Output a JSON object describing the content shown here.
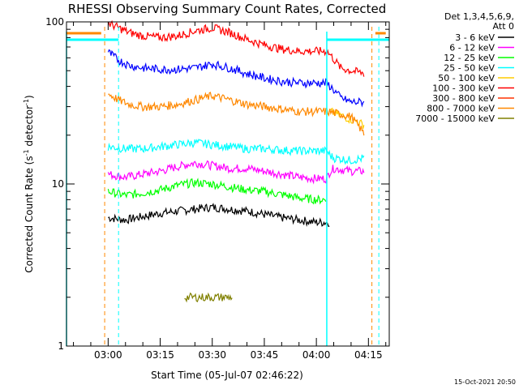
{
  "chart_data": {
    "type": "line",
    "title": "RHESSI Observing Summary Count Rates, Corrected",
    "xlabel": "Start Time (05-Jul-07 02:46:22)",
    "ylabel_main": "Corrected Count Rate (s",
    "ylabel_sup": "-1",
    "ylabel_tail": " detector",
    "ylabel_end": ")",
    "y_scale": "log",
    "ylim": [
      1,
      100
    ],
    "y_ticks": [
      {
        "value": 1,
        "label": "1"
      },
      {
        "value": 10,
        "label": "10"
      },
      {
        "value": 100,
        "label": "100"
      }
    ],
    "xlim_minutes": [
      -12,
      81
    ],
    "x_ticks": [
      {
        "value": 0,
        "label": "03:00"
      },
      {
        "value": 15,
        "label": "03:15"
      },
      {
        "value": 30,
        "label": "03:30"
      },
      {
        "value": 45,
        "label": "03:45"
      },
      {
        "value": 60,
        "label": "04:00"
      },
      {
        "value": 75,
        "label": "04:15"
      }
    ],
    "legend_header": [
      "Det 1,3,4,5,6,9,",
      "Att 0"
    ],
    "legend_position": "right",
    "series": [
      {
        "name": "3 - 6 keV",
        "color": "#000000",
        "x": [
          0,
          5,
          10,
          15,
          20,
          25,
          30,
          35,
          40,
          45,
          50,
          55,
          60,
          63,
          64
        ],
        "y": [
          6.2,
          6.0,
          6.3,
          6.6,
          6.8,
          7.0,
          7.2,
          7.0,
          6.8,
          6.5,
          6.2,
          6.0,
          5.8,
          5.8,
          5.8
        ]
      },
      {
        "name": "6 - 12 keV",
        "color": "#ff00ff",
        "x": [
          0,
          5,
          10,
          15,
          20,
          25,
          30,
          35,
          40,
          45,
          50,
          55,
          60,
          63,
          64,
          65,
          70,
          74
        ],
        "y": [
          11.5,
          11.0,
          11.5,
          12.0,
          12.8,
          13.5,
          13.0,
          12.5,
          12.5,
          12.0,
          11.5,
          11.0,
          10.8,
          10.8,
          12.0,
          12.5,
          12.0,
          12.0
        ]
      },
      {
        "name": "12 - 25 keV",
        "color": "#00ff00",
        "x": [
          0,
          5,
          10,
          15,
          20,
          25,
          30,
          35,
          40,
          45,
          50,
          55,
          60,
          63
        ],
        "y": [
          9.0,
          8.5,
          8.8,
          9.2,
          9.8,
          10.2,
          10.0,
          9.6,
          9.2,
          9.0,
          8.6,
          8.2,
          8.0,
          8.0
        ]
      },
      {
        "name": "25 - 50 keV",
        "color": "#00ffff",
        "x": [
          0,
          5,
          10,
          15,
          20,
          25,
          30,
          35,
          40,
          45,
          50,
          55,
          60,
          63,
          64,
          65,
          70,
          74
        ],
        "y": [
          17,
          16.5,
          16.5,
          17,
          17.5,
          18,
          17.5,
          17,
          16.5,
          16.5,
          16.2,
          16,
          16,
          16,
          15,
          14.5,
          14,
          14.5
        ]
      },
      {
        "name": "50 - 100 keV",
        "color": "#ffcc00",
        "x": [
          64,
          66,
          68,
          70,
          72,
          74
        ],
        "y": [
          28,
          27,
          26,
          25,
          24,
          23
        ]
      },
      {
        "name": "100 - 300 keV",
        "color": "#ff0000",
        "x": [
          0,
          3,
          6,
          10,
          15,
          20,
          25,
          30,
          35,
          40,
          45,
          50,
          55,
          60,
          63,
          67,
          70,
          74
        ],
        "y": [
          98,
          92,
          86,
          82,
          80,
          82,
          88,
          92,
          86,
          78,
          72,
          68,
          66,
          66,
          66,
          52,
          50,
          48
        ]
      },
      {
        "name": "300 - 800 keV",
        "color": "#ff3300",
        "x": [],
        "y": []
      },
      {
        "name": "800 - 7000 keV",
        "color": "#ff8800",
        "x": [
          0,
          3,
          6,
          10,
          15,
          20,
          25,
          30,
          35,
          40,
          45,
          50,
          55,
          60,
          63,
          67,
          70,
          74
        ],
        "y": [
          36,
          33,
          31,
          30,
          30,
          31,
          33,
          35,
          33,
          31,
          30,
          29,
          28,
          28,
          28,
          27,
          26,
          20
        ]
      },
      {
        "name": "7000 - 15000 keV",
        "color": "#808000",
        "x": [
          22,
          24,
          26,
          28,
          30,
          32,
          34,
          36
        ],
        "y": [
          2.0,
          2.0,
          2.0,
          2.0,
          2.0,
          2.0,
          2.0,
          2.0
        ]
      }
    ],
    "extra_series": [
      {
        "color": "#0000ff",
        "x": [
          0,
          3,
          6,
          10,
          15,
          20,
          25,
          30,
          35,
          40,
          45,
          50,
          55,
          60,
          63,
          67,
          70,
          74
        ],
        "y": [
          65,
          58,
          54,
          52,
          51,
          51,
          52,
          55,
          52,
          48,
          45,
          43,
          42,
          42,
          42,
          34,
          32,
          32
        ]
      }
    ],
    "timestamp": "15-Oct-2021 20:50"
  }
}
